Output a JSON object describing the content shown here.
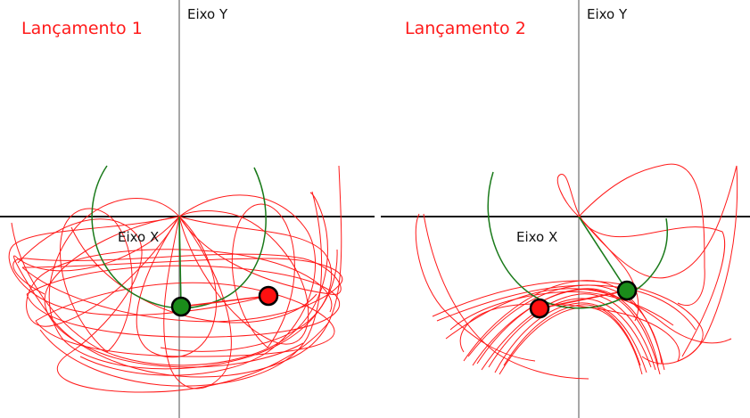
{
  "panels": [
    {
      "title": "Lançamento 1",
      "x_axis_label": "Eixo X",
      "y_axis_label": "Eixo Y"
    },
    {
      "title": "Lançamento 2",
      "x_axis_label": "Eixo X",
      "y_axis_label": "Eixo Y"
    }
  ],
  "colors": {
    "title": "#ff1a1a",
    "trail": "#ff1a1a",
    "arc": "#1a7a1a",
    "bob1": "#1a8c1a",
    "bob2": "#ff1010",
    "outline": "#000000"
  }
}
